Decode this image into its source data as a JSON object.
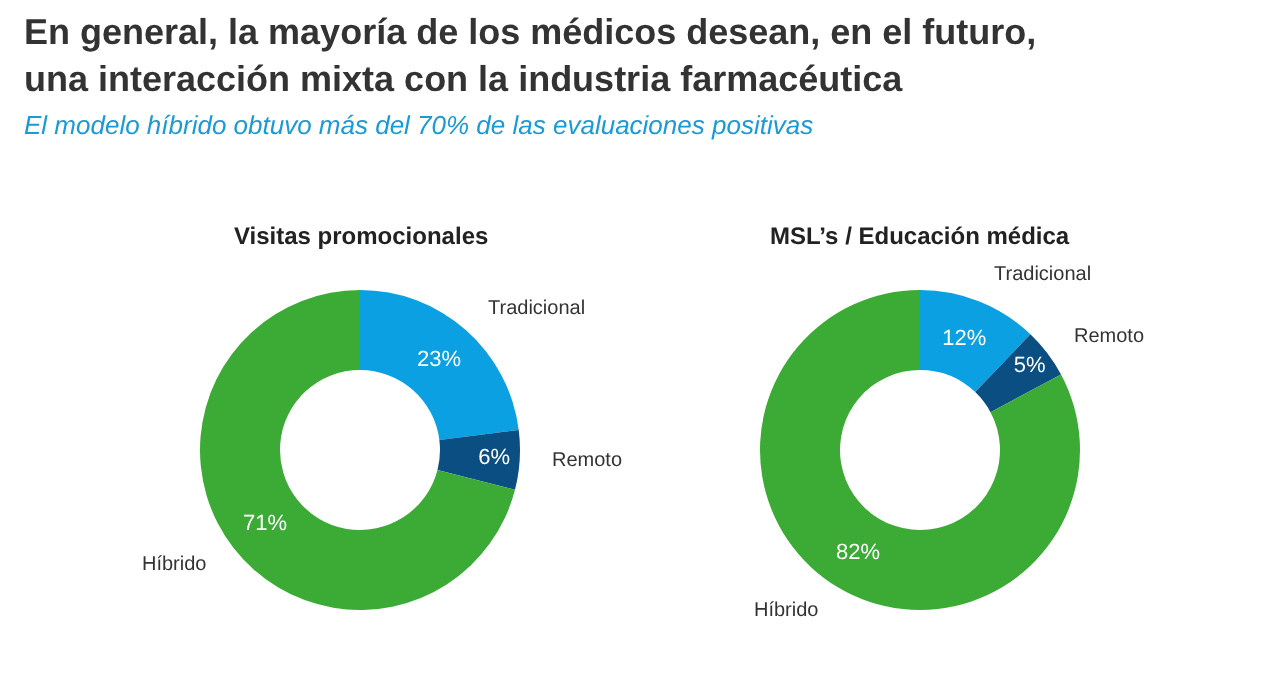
{
  "chart_data": [
    {
      "type": "other",
      "title": "En general, la mayoría de los médicos desean, en el futuro, una interacción mixta con la industria farmacéutica",
      "subtitle": "El modelo híbrido obtuvo más del 70% de las evaluaciones positivas"
    },
    {
      "type": "donut",
      "title": "Visitas promocionales",
      "categories": [
        "Tradicional",
        "Remoto",
        "Híbrido"
      ],
      "values": [
        23,
        6,
        71
      ],
      "value_labels": [
        "23%",
        "6%",
        "71%"
      ],
      "colors": [
        "#0ba0e2",
        "#0b4f82",
        "#3cab35"
      ]
    },
    {
      "type": "donut",
      "title": "MSL’s / Educación médica",
      "categories": [
        "Tradicional",
        "Remoto",
        "Híbrido"
      ],
      "values": [
        12,
        5,
        82
      ],
      "value_labels": [
        "12%",
        "5%",
        "82%"
      ],
      "colors": [
        "#0ba0e2",
        "#0b4f82",
        "#3cab35"
      ]
    }
  ]
}
